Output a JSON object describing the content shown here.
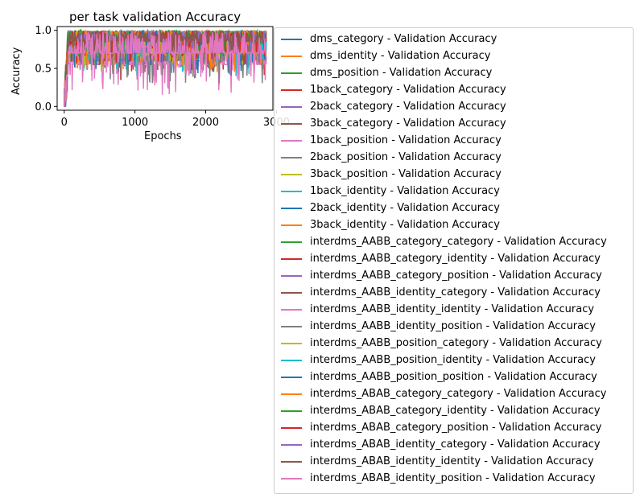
{
  "chart_data": {
    "type": "line",
    "title": "per task validation Accuracy",
    "xlabel": "Epochs",
    "ylabel": "Accuracy",
    "xlim": [
      -100,
      2950
    ],
    "ylim": [
      -0.05,
      1.05
    ],
    "x_ticks": [
      0,
      1000,
      2000,
      3000
    ],
    "x_tick_labels": [
      "0",
      "1000",
      "2000",
      "3000"
    ],
    "y_ticks": [
      0.0,
      0.5,
      1.0
    ],
    "y_tick_labels": [
      "0.0",
      "0.5",
      "1.0"
    ],
    "grid": false,
    "legend_position": "outside-right",
    "colors": [
      "#1f77b4",
      "#ff7f0e",
      "#2ca02c",
      "#d62728",
      "#9467bd",
      "#8c564b",
      "#e377c2",
      "#7f7f7f",
      "#bcbd22",
      "#17becf"
    ],
    "series": [
      {
        "name": "dms_category - Validation Accuracy",
        "color": "#1f77b4",
        "base": 0.78,
        "min": 0.5
      },
      {
        "name": "dms_identity - Validation Accuracy",
        "color": "#ff7f0e",
        "base": 0.82,
        "min": 0.6
      },
      {
        "name": "dms_position - Validation Accuracy",
        "color": "#2ca02c",
        "base": 0.92,
        "min": 0.7
      },
      {
        "name": "1back_category - Validation Accuracy",
        "color": "#d62728",
        "base": 0.75,
        "min": 0.35
      },
      {
        "name": "2back_category - Validation Accuracy",
        "color": "#9467bd",
        "base": 0.72,
        "min": 0.45
      },
      {
        "name": "3back_category - Validation Accuracy",
        "color": "#8c564b",
        "base": 0.7,
        "min": 0.45
      },
      {
        "name": "1back_position - Validation Accuracy",
        "color": "#e377c2",
        "base": 0.55,
        "min": 0.15
      },
      {
        "name": "2back_position - Validation Accuracy",
        "color": "#7f7f7f",
        "base": 0.6,
        "min": 0.3
      },
      {
        "name": "3back_position - Validation Accuracy",
        "color": "#bcbd22",
        "base": 0.68,
        "min": 0.45
      },
      {
        "name": "1back_identity - Validation Accuracy",
        "color": "#17becf",
        "base": 0.72,
        "min": 0.35
      },
      {
        "name": "2back_identity - Validation Accuracy",
        "color": "#1f77b4",
        "base": 0.7,
        "min": 0.4
      },
      {
        "name": "3back_identity - Validation Accuracy",
        "color": "#ff7f0e",
        "base": 0.72,
        "min": 0.45
      },
      {
        "name": "interdms_AABB_category_category - Validation Accuracy",
        "color": "#2ca02c",
        "base": 0.9,
        "min": 0.6
      },
      {
        "name": "interdms_AABB_category_identity - Validation Accuracy",
        "color": "#d62728",
        "base": 0.85,
        "min": 0.55
      },
      {
        "name": "interdms_AABB_category_position - Validation Accuracy",
        "color": "#9467bd",
        "base": 0.85,
        "min": 0.55
      },
      {
        "name": "interdms_AABB_identity_category - Validation Accuracy",
        "color": "#8c564b",
        "base": 0.85,
        "min": 0.55
      },
      {
        "name": "interdms_AABB_identity_identity - Validation Accuracy",
        "color": "#e377c2",
        "base": 0.85,
        "min": 0.55
      },
      {
        "name": "interdms_AABB_identity_position - Validation Accuracy",
        "color": "#7f7f7f",
        "base": 0.85,
        "min": 0.55
      },
      {
        "name": "interdms_AABB_position_category - Validation Accuracy",
        "color": "#bcbd22",
        "base": 0.85,
        "min": 0.55
      },
      {
        "name": "interdms_AABB_position_identity - Validation Accuracy",
        "color": "#17becf",
        "base": 0.85,
        "min": 0.55
      },
      {
        "name": "interdms_AABB_position_position - Validation Accuracy",
        "color": "#1f77b4",
        "base": 0.85,
        "min": 0.55
      },
      {
        "name": "interdms_ABAB_category_category - Validation Accuracy",
        "color": "#ff7f0e",
        "base": 0.88,
        "min": 0.6
      },
      {
        "name": "interdms_ABAB_category_identity - Validation Accuracy",
        "color": "#2ca02c",
        "base": 0.9,
        "min": 0.65
      },
      {
        "name": "interdms_ABAB_category_position - Validation Accuracy",
        "color": "#d62728",
        "base": 0.86,
        "min": 0.55
      },
      {
        "name": "interdms_ABAB_identity_category - Validation Accuracy",
        "color": "#9467bd",
        "base": 0.86,
        "min": 0.55
      },
      {
        "name": "interdms_ABAB_identity_identity - Validation Accuracy",
        "color": "#8c564b",
        "base": 0.86,
        "min": 0.55
      },
      {
        "name": "interdms_ABAB_identity_position - Validation Accuracy",
        "color": "#e377c2",
        "base": 0.7,
        "min": 0.3
      }
    ]
  }
}
